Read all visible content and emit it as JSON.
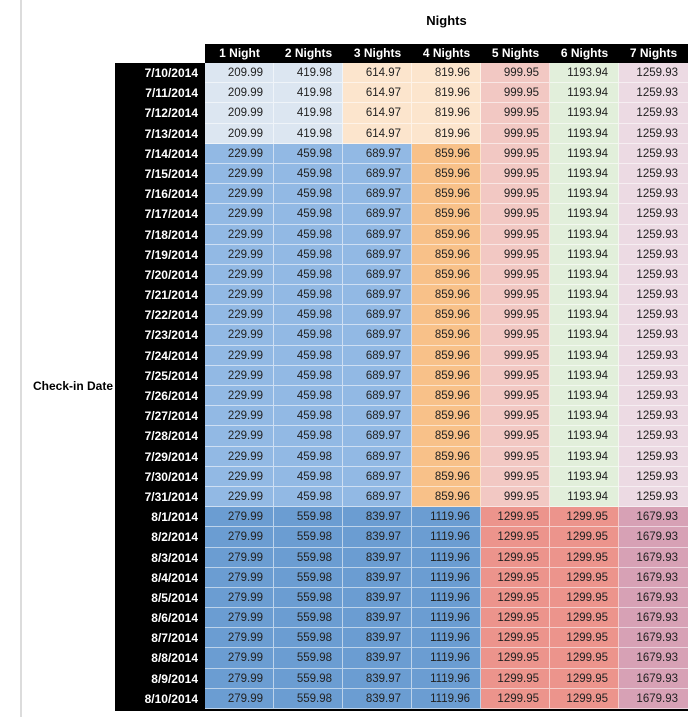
{
  "chart_data": {
    "type": "table",
    "title": "Nights",
    "row_axis_label": "Check-in Date",
    "columns": [
      "1 Night",
      "2 Nights",
      "3 Nights",
      "4 Nights",
      "5 Nights",
      "6 Nights",
      "7 Nights"
    ],
    "cell_color_sets": {
      "A": [
        "#dce6f1",
        "#dce6f1",
        "#fce5cd",
        "#fce5cd",
        "#f2c8c3",
        "#e2efdb",
        "#ecdae3"
      ],
      "B": [
        "#92b9e4",
        "#92b9e4",
        "#92b9e4",
        "#f8c189",
        "#f2c8c3",
        "#e2efdb",
        "#ecdae3"
      ],
      "C": [
        "#6b9dd2",
        "#6b9dd2",
        "#6b9dd2",
        "#6b9dd2",
        "#ec948c",
        "#ec948c",
        "#d7a1b5"
      ]
    },
    "header_bg": "#000000",
    "header_text_color": "#ffffff",
    "date_column_bg": "#000000",
    "date_text_color": "#ffffff",
    "rows": [
      {
        "date": "7/10/2014",
        "colors": "A",
        "values": [
          "209.99",
          "419.98",
          "614.97",
          "819.96",
          "999.95",
          "1193.94",
          "1259.93"
        ]
      },
      {
        "date": "7/11/2014",
        "colors": "A",
        "values": [
          "209.99",
          "419.98",
          "614.97",
          "819.96",
          "999.95",
          "1193.94",
          "1259.93"
        ]
      },
      {
        "date": "7/12/2014",
        "colors": "A",
        "values": [
          "209.99",
          "419.98",
          "614.97",
          "819.96",
          "999.95",
          "1193.94",
          "1259.93"
        ]
      },
      {
        "date": "7/13/2014",
        "colors": "A",
        "values": [
          "209.99",
          "419.98",
          "614.97",
          "819.96",
          "999.95",
          "1193.94",
          "1259.93"
        ]
      },
      {
        "date": "7/14/2014",
        "colors": "B",
        "values": [
          "229.99",
          "459.98",
          "689.97",
          "859.96",
          "999.95",
          "1193.94",
          "1259.93"
        ]
      },
      {
        "date": "7/15/2014",
        "colors": "B",
        "values": [
          "229.99",
          "459.98",
          "689.97",
          "859.96",
          "999.95",
          "1193.94",
          "1259.93"
        ]
      },
      {
        "date": "7/16/2014",
        "colors": "B",
        "values": [
          "229.99",
          "459.98",
          "689.97",
          "859.96",
          "999.95",
          "1193.94",
          "1259.93"
        ]
      },
      {
        "date": "7/17/2014",
        "colors": "B",
        "values": [
          "229.99",
          "459.98",
          "689.97",
          "859.96",
          "999.95",
          "1193.94",
          "1259.93"
        ]
      },
      {
        "date": "7/18/2014",
        "colors": "B",
        "values": [
          "229.99",
          "459.98",
          "689.97",
          "859.96",
          "999.95",
          "1193.94",
          "1259.93"
        ]
      },
      {
        "date": "7/19/2014",
        "colors": "B",
        "values": [
          "229.99",
          "459.98",
          "689.97",
          "859.96",
          "999.95",
          "1193.94",
          "1259.93"
        ]
      },
      {
        "date": "7/20/2014",
        "colors": "B",
        "values": [
          "229.99",
          "459.98",
          "689.97",
          "859.96",
          "999.95",
          "1193.94",
          "1259.93"
        ]
      },
      {
        "date": "7/21/2014",
        "colors": "B",
        "values": [
          "229.99",
          "459.98",
          "689.97",
          "859.96",
          "999.95",
          "1193.94",
          "1259.93"
        ]
      },
      {
        "date": "7/22/2014",
        "colors": "B",
        "values": [
          "229.99",
          "459.98",
          "689.97",
          "859.96",
          "999.95",
          "1193.94",
          "1259.93"
        ]
      },
      {
        "date": "7/23/2014",
        "colors": "B",
        "values": [
          "229.99",
          "459.98",
          "689.97",
          "859.96",
          "999.95",
          "1193.94",
          "1259.93"
        ]
      },
      {
        "date": "7/24/2014",
        "colors": "B",
        "values": [
          "229.99",
          "459.98",
          "689.97",
          "859.96",
          "999.95",
          "1193.94",
          "1259.93"
        ]
      },
      {
        "date": "7/25/2014",
        "colors": "B",
        "values": [
          "229.99",
          "459.98",
          "689.97",
          "859.96",
          "999.95",
          "1193.94",
          "1259.93"
        ]
      },
      {
        "date": "7/26/2014",
        "colors": "B",
        "values": [
          "229.99",
          "459.98",
          "689.97",
          "859.96",
          "999.95",
          "1193.94",
          "1259.93"
        ]
      },
      {
        "date": "7/27/2014",
        "colors": "B",
        "values": [
          "229.99",
          "459.98",
          "689.97",
          "859.96",
          "999.95",
          "1193.94",
          "1259.93"
        ]
      },
      {
        "date": "7/28/2014",
        "colors": "B",
        "values": [
          "229.99",
          "459.98",
          "689.97",
          "859.96",
          "999.95",
          "1193.94",
          "1259.93"
        ]
      },
      {
        "date": "7/29/2014",
        "colors": "B",
        "values": [
          "229.99",
          "459.98",
          "689.97",
          "859.96",
          "999.95",
          "1193.94",
          "1259.93"
        ]
      },
      {
        "date": "7/30/2014",
        "colors": "B",
        "values": [
          "229.99",
          "459.98",
          "689.97",
          "859.96",
          "999.95",
          "1193.94",
          "1259.93"
        ]
      },
      {
        "date": "7/31/2014",
        "colors": "B",
        "values": [
          "229.99",
          "459.98",
          "689.97",
          "859.96",
          "999.95",
          "1193.94",
          "1259.93"
        ]
      },
      {
        "date": "8/1/2014",
        "colors": "C",
        "values": [
          "279.99",
          "559.98",
          "839.97",
          "1119.96",
          "1299.95",
          "1299.95",
          "1679.93"
        ]
      },
      {
        "date": "8/2/2014",
        "colors": "C",
        "values": [
          "279.99",
          "559.98",
          "839.97",
          "1119.96",
          "1299.95",
          "1299.95",
          "1679.93"
        ]
      },
      {
        "date": "8/3/2014",
        "colors": "C",
        "values": [
          "279.99",
          "559.98",
          "839.97",
          "1119.96",
          "1299.95",
          "1299.95",
          "1679.93"
        ]
      },
      {
        "date": "8/4/2014",
        "colors": "C",
        "values": [
          "279.99",
          "559.98",
          "839.97",
          "1119.96",
          "1299.95",
          "1299.95",
          "1679.93"
        ]
      },
      {
        "date": "8/5/2014",
        "colors": "C",
        "values": [
          "279.99",
          "559.98",
          "839.97",
          "1119.96",
          "1299.95",
          "1299.95",
          "1679.93"
        ]
      },
      {
        "date": "8/6/2014",
        "colors": "C",
        "values": [
          "279.99",
          "559.98",
          "839.97",
          "1119.96",
          "1299.95",
          "1299.95",
          "1679.93"
        ]
      },
      {
        "date": "8/7/2014",
        "colors": "C",
        "values": [
          "279.99",
          "559.98",
          "839.97",
          "1119.96",
          "1299.95",
          "1299.95",
          "1679.93"
        ]
      },
      {
        "date": "8/8/2014",
        "colors": "C",
        "values": [
          "279.99",
          "559.98",
          "839.97",
          "1119.96",
          "1299.95",
          "1299.95",
          "1679.93"
        ]
      },
      {
        "date": "8/9/2014",
        "colors": "C",
        "values": [
          "279.99",
          "559.98",
          "839.97",
          "1119.96",
          "1299.95",
          "1299.95",
          "1679.93"
        ]
      },
      {
        "date": "8/10/2014",
        "colors": "C",
        "values": [
          "279.99",
          "559.98",
          "839.97",
          "1119.96",
          "1299.95",
          "1299.95",
          "1679.93"
        ]
      }
    ]
  }
}
